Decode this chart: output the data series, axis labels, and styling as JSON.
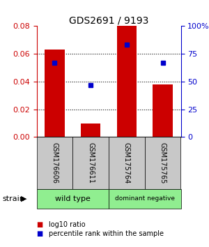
{
  "title": "GDS2691 / 9193",
  "samples": [
    "GSM176606",
    "GSM176611",
    "GSM175764",
    "GSM175765"
  ],
  "bar_values": [
    0.063,
    0.01,
    0.08,
    0.038
  ],
  "percentile_values": [
    67,
    47,
    83,
    67
  ],
  "left_ylim": [
    0,
    0.08
  ],
  "right_ylim": [
    0,
    100
  ],
  "left_yticks": [
    0,
    0.02,
    0.04,
    0.06,
    0.08
  ],
  "right_yticks": [
    0,
    25,
    50,
    75,
    100
  ],
  "right_yticklabels": [
    "0",
    "25",
    "50",
    "75",
    "100%"
  ],
  "bar_color": "#CC0000",
  "dot_color": "#0000CC",
  "bar_width": 0.55,
  "title_color": "#000000",
  "left_tick_color": "#CC0000",
  "right_tick_color": "#0000CC",
  "background_color": "#ffffff",
  "legend_red_label": "log10 ratio",
  "legend_blue_label": "percentile rank within the sample",
  "strain_label": "strain",
  "group_box_bg": "#C8C8C8",
  "group_color": "#90EE90",
  "groups": [
    {
      "label": "wild type",
      "start": 0,
      "end": 2
    },
    {
      "label": "dominant negative",
      "start": 2,
      "end": 4
    }
  ]
}
